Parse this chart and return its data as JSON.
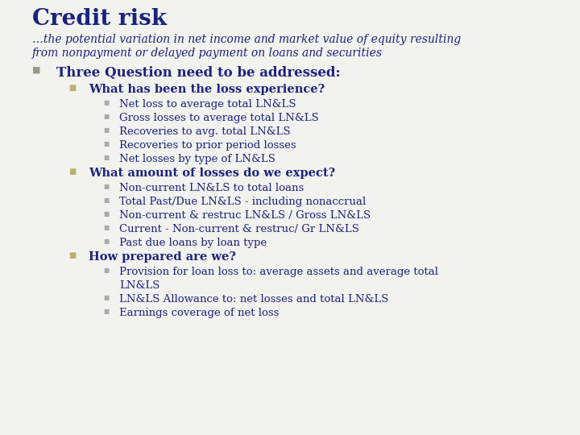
{
  "bg_color": "#f2f2ee",
  "title": "Credit risk",
  "title_color": "#1a237e",
  "subtitle1": "…the potential variation in net income and market value of equity resulting",
  "subtitle2": "from nonpayment or delayed payment on loans and securities",
  "subtitle_color": "#1a237e",
  "text_color": "#1a237e",
  "bullet1_color": "#9a9a8a",
  "bullet2_color": "#b8b070",
  "bullet3_color": "#aaaaaa",
  "l1": "Three Question need to be addressed:",
  "l2a": "What has been the loss experience?",
  "l2b": "What amount of losses do we expect?",
  "l2c": "How prepared are we?",
  "l3a1": "Net loss to average total LN&LS",
  "l3a2": "Gross losses to average total LN&LS",
  "l3a3": "Recoveries to avg. total LN&LS",
  "l3a4": "Recoveries to prior period losses",
  "l3a5": "Net losses by type of LN&LS",
  "l3b1": "Non-current LN&LS to total loans",
  "l3b2": "Total Past/Due LN&LS - including nonaccrual",
  "l3b3": "Non-current & restruc LN&LS / Gross LN&LS",
  "l3b4": "Current - Non-current & restruc/ Gr LN&LS",
  "l3b5": "Past due loans by loan type",
  "l3c1a": "Provision for loan loss to: average assets and average total",
  "l3c1b": "LN&LS",
  "l3c2": "LN&LS Allowance to: net losses and total LN&LS",
  "l3c3": "Earnings coverage of net loss"
}
